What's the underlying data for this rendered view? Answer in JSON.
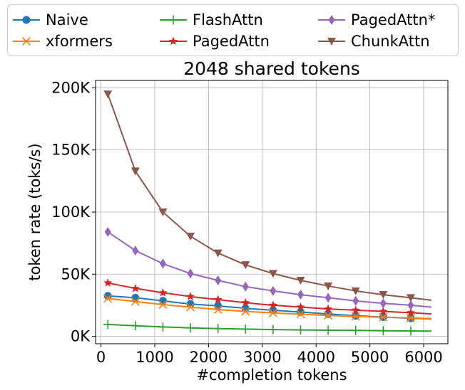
{
  "chart_data": {
    "type": "line",
    "title": "2048 shared tokens",
    "xlabel": "#completion tokens",
    "ylabel": "token rate (toks/s)",
    "xlim": [
      -100,
      6450
    ],
    "ylim": [
      -6000,
      206000
    ],
    "xticks": [
      0,
      1000,
      2000,
      3000,
      4000,
      5000,
      6000
    ],
    "xtick_labels": [
      "0",
      "1000",
      "2000",
      "3000",
      "4000",
      "5000",
      "6000"
    ],
    "yticks": [
      0,
      50000,
      100000,
      150000,
      200000
    ],
    "ytick_labels": [
      "0K",
      "50K",
      "100K",
      "150K",
      "200K"
    ],
    "grid": true,
    "legend_placement": "top, above plot, 3 columns",
    "x": [
      128,
      640,
      1152,
      1664,
      2176,
      2688,
      3200,
      3712,
      4224,
      4736,
      5248,
      5760,
      6144
    ],
    "series": [
      {
        "name": "Naive",
        "color": "#1f77b4",
        "marker": "circle",
        "values": [
          32500,
          31000,
          28500,
          26000,
          24500,
          22500,
          21000,
          19500,
          18000,
          16500,
          15500,
          14500,
          14000
        ]
      },
      {
        "name": "xformers",
        "color": "#ff7f0e",
        "marker": "x",
        "values": [
          30500,
          28000,
          25500,
          23500,
          21500,
          20000,
          18800,
          17800,
          16800,
          16000,
          15300,
          14800,
          14300
        ]
      },
      {
        "name": "FlashAttn",
        "color": "#2ca02c",
        "marker": "plus",
        "values": [
          9500,
          8500,
          7500,
          6800,
          6200,
          5800,
          5400,
          5100,
          4900,
          4700,
          4500,
          4300,
          4200
        ]
      },
      {
        "name": "PagedAttn",
        "color": "#d62728",
        "marker": "star",
        "values": [
          43000,
          38500,
          35000,
          32000,
          29500,
          27000,
          25000,
          23500,
          22000,
          21000,
          20000,
          19000,
          18000
        ]
      },
      {
        "name": "PagedAttn*",
        "color": "#9467bd",
        "marker": "diamond",
        "values": [
          84000,
          69000,
          58500,
          50500,
          45000,
          40000,
          36500,
          33500,
          31000,
          28500,
          26500,
          25000,
          23500
        ]
      },
      {
        "name": "ChunkAttn",
        "color": "#8c564b",
        "marker": "triangle-down",
        "values": [
          195000,
          133000,
          100000,
          80500,
          67000,
          57500,
          50500,
          45000,
          40500,
          36500,
          33500,
          31000,
          29000
        ]
      }
    ]
  }
}
